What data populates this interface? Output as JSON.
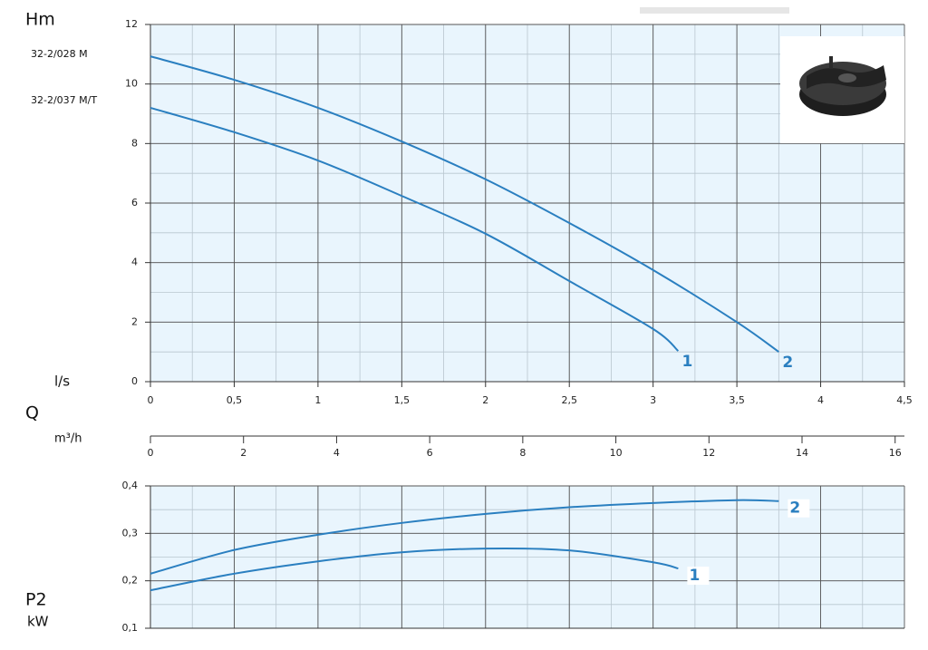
{
  "chart_data": [
    {
      "type": "line",
      "y_label": "Hm",
      "x_label": "l/s",
      "q_label": "Q",
      "x2_label": "m³/h",
      "annotations": [
        "32-2/028 M",
        "32-2/037 M/T"
      ],
      "xlim": [
        0,
        4.5
      ],
      "xticks": [
        0,
        {
          "value": 0.5,
          "label": "0,5"
        },
        1,
        {
          "value": 1.5,
          "label": "1,5"
        },
        2,
        {
          "value": 2.5,
          "label": "2,5"
        },
        3,
        {
          "value": 3.5,
          "label": "3,5"
        },
        4,
        {
          "value": 4.5,
          "label": "4,5"
        }
      ],
      "x2lim": [
        0,
        16.2
      ],
      "x2ticks": [
        0,
        2,
        4,
        6,
        8,
        10,
        12,
        14,
        16
      ],
      "ylim": [
        0,
        12
      ],
      "yticks": [
        0,
        2,
        4,
        6,
        8,
        10,
        12
      ],
      "grid": true,
      "series": [
        {
          "name": "1",
          "color": "#2a7fc0",
          "x": [
            0,
            0.5,
            1,
            1.5,
            2,
            2.5,
            3,
            3.15
          ],
          "values": [
            9.2,
            8.38,
            7.43,
            6.24,
            4.97,
            3.38,
            1.77,
            1.03
          ]
        },
        {
          "name": "2",
          "color": "#2a7fc0",
          "x": [
            0,
            0.5,
            1,
            1.5,
            2,
            2.5,
            3,
            3.5,
            3.75
          ],
          "values": [
            10.93,
            10.14,
            9.2,
            8.07,
            6.8,
            5.33,
            3.75,
            2.0,
            1.0
          ]
        }
      ]
    },
    {
      "type": "line",
      "y_label": "P2",
      "y_unit": "kW",
      "xlim": [
        0,
        4.5
      ],
      "ylim": [
        0.1,
        0.4
      ],
      "yticks": [
        {
          "value": 0.1,
          "label": "0,1"
        },
        {
          "value": 0.2,
          "label": "0,2"
        },
        {
          "value": 0.3,
          "label": "0,3"
        },
        {
          "value": 0.4,
          "label": "0,4"
        }
      ],
      "grid": true,
      "series": [
        {
          "name": "1",
          "color": "#2a7fc0",
          "x": [
            0,
            0.5,
            1,
            1.5,
            2,
            2.5,
            3,
            3.15
          ],
          "values": [
            0.18,
            0.215,
            0.241,
            0.26,
            0.268,
            0.264,
            0.239,
            0.226
          ]
        },
        {
          "name": "2",
          "color": "#2a7fc0",
          "x": [
            0,
            0.5,
            1,
            1.5,
            2,
            2.5,
            3,
            3.5,
            3.75
          ],
          "values": [
            0.215,
            0.265,
            0.297,
            0.322,
            0.341,
            0.355,
            0.364,
            0.37,
            0.368
          ]
        }
      ]
    }
  ]
}
